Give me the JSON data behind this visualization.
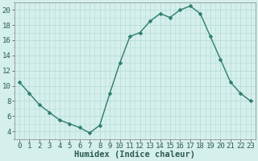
{
  "x": [
    0,
    1,
    2,
    3,
    4,
    5,
    6,
    7,
    8,
    9,
    10,
    11,
    12,
    13,
    14,
    15,
    16,
    17,
    18,
    19,
    20,
    21,
    22,
    23
  ],
  "y": [
    10.5,
    9.0,
    7.5,
    6.5,
    5.5,
    5.0,
    4.5,
    3.8,
    4.8,
    9.0,
    13.0,
    16.5,
    17.0,
    18.5,
    19.5,
    19.0,
    20.0,
    20.5,
    19.5,
    16.5,
    13.5,
    10.5,
    9.0,
    8.0
  ],
  "line_color": "#2d7d6e",
  "marker": "D",
  "marker_size": 2.5,
  "bg_color": "#d4efec",
  "grid_color": "#b8ddd8",
  "xlabel": "Humidex (Indice chaleur)",
  "xlim": [
    -0.5,
    23.5
  ],
  "ylim": [
    3.0,
    21.0
  ],
  "yticks": [
    4,
    6,
    8,
    10,
    12,
    14,
    16,
    18,
    20
  ],
  "xticks": [
    0,
    1,
    2,
    3,
    4,
    5,
    6,
    7,
    8,
    9,
    10,
    11,
    12,
    13,
    14,
    15,
    16,
    17,
    18,
    19,
    20,
    21,
    22,
    23
  ],
  "tick_fontsize": 6.5,
  "xlabel_fontsize": 7.5
}
